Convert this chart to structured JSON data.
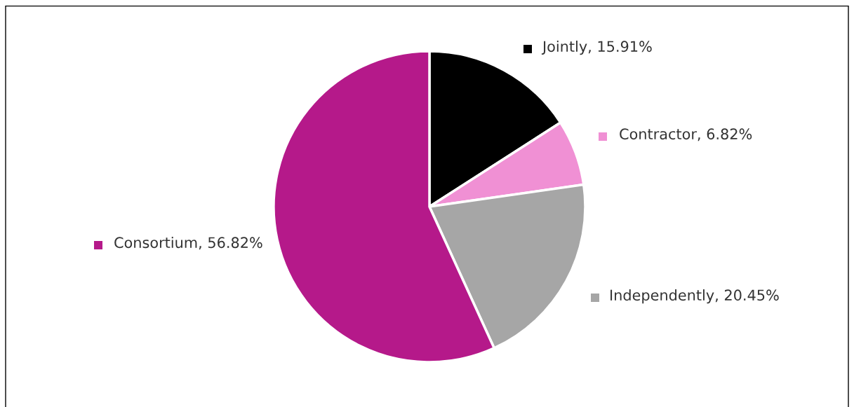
{
  "chart_data": {
    "type": "pie",
    "categories": [
      "Jointly",
      "Contractor",
      "Independently",
      "Consortium"
    ],
    "value_labels": [
      "15.91%",
      "6.82%",
      "20.45%",
      "56.82%"
    ],
    "values": [
      15.91,
      6.82,
      20.45,
      56.82
    ],
    "colors": [
      "#000000",
      "#f090d4",
      "#a6a6a6",
      "#b5198a"
    ],
    "legend": "right"
  }
}
